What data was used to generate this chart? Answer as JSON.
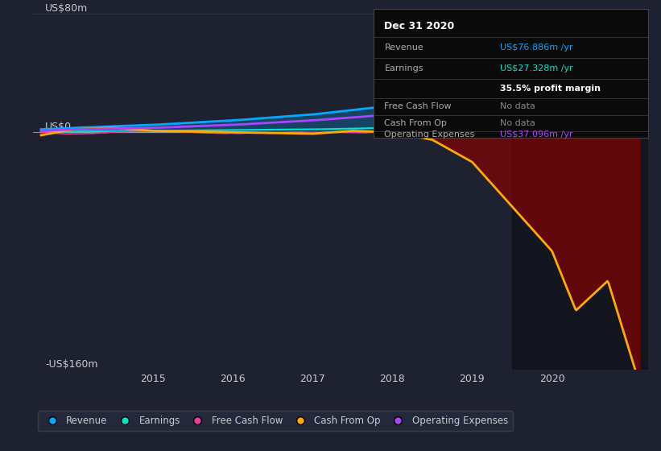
{
  "bg_color": "#1e2130",
  "y_min": -160,
  "y_max": 80,
  "x_min": 2013.5,
  "x_max": 2021.2,
  "xticks": [
    2015,
    2016,
    2017,
    2018,
    2019,
    2020
  ],
  "highlight_start": 2019.5,
  "legend_items": [
    {
      "label": "Revenue",
      "color": "#00aaff"
    },
    {
      "label": "Earnings",
      "color": "#00e5cc"
    },
    {
      "label": "Free Cash Flow",
      "color": "#e040a0"
    },
    {
      "label": "Cash From Op",
      "color": "#ffaa00"
    },
    {
      "label": "Operating Expenses",
      "color": "#aa44ff"
    }
  ],
  "info_box": {
    "title": "Dec 31 2020",
    "rows": [
      {
        "label": "Revenue",
        "value": "US$76.886m /yr",
        "value_color": "#00aaff",
        "bold": false
      },
      {
        "label": "Earnings",
        "value": "US$27.328m /yr",
        "value_color": "#00e5cc",
        "bold": false
      },
      {
        "label": "",
        "value": "35.5% profit margin",
        "value_color": "#ffffff",
        "bold": true
      },
      {
        "label": "Free Cash Flow",
        "value": "No data",
        "value_color": "#888888",
        "bold": false
      },
      {
        "label": "Cash From Op",
        "value": "No data",
        "value_color": "#888888",
        "bold": false
      },
      {
        "label": "Operating Expenses",
        "value": "US$37.096m /yr",
        "value_color": "#aa44ff",
        "bold": false
      }
    ]
  }
}
